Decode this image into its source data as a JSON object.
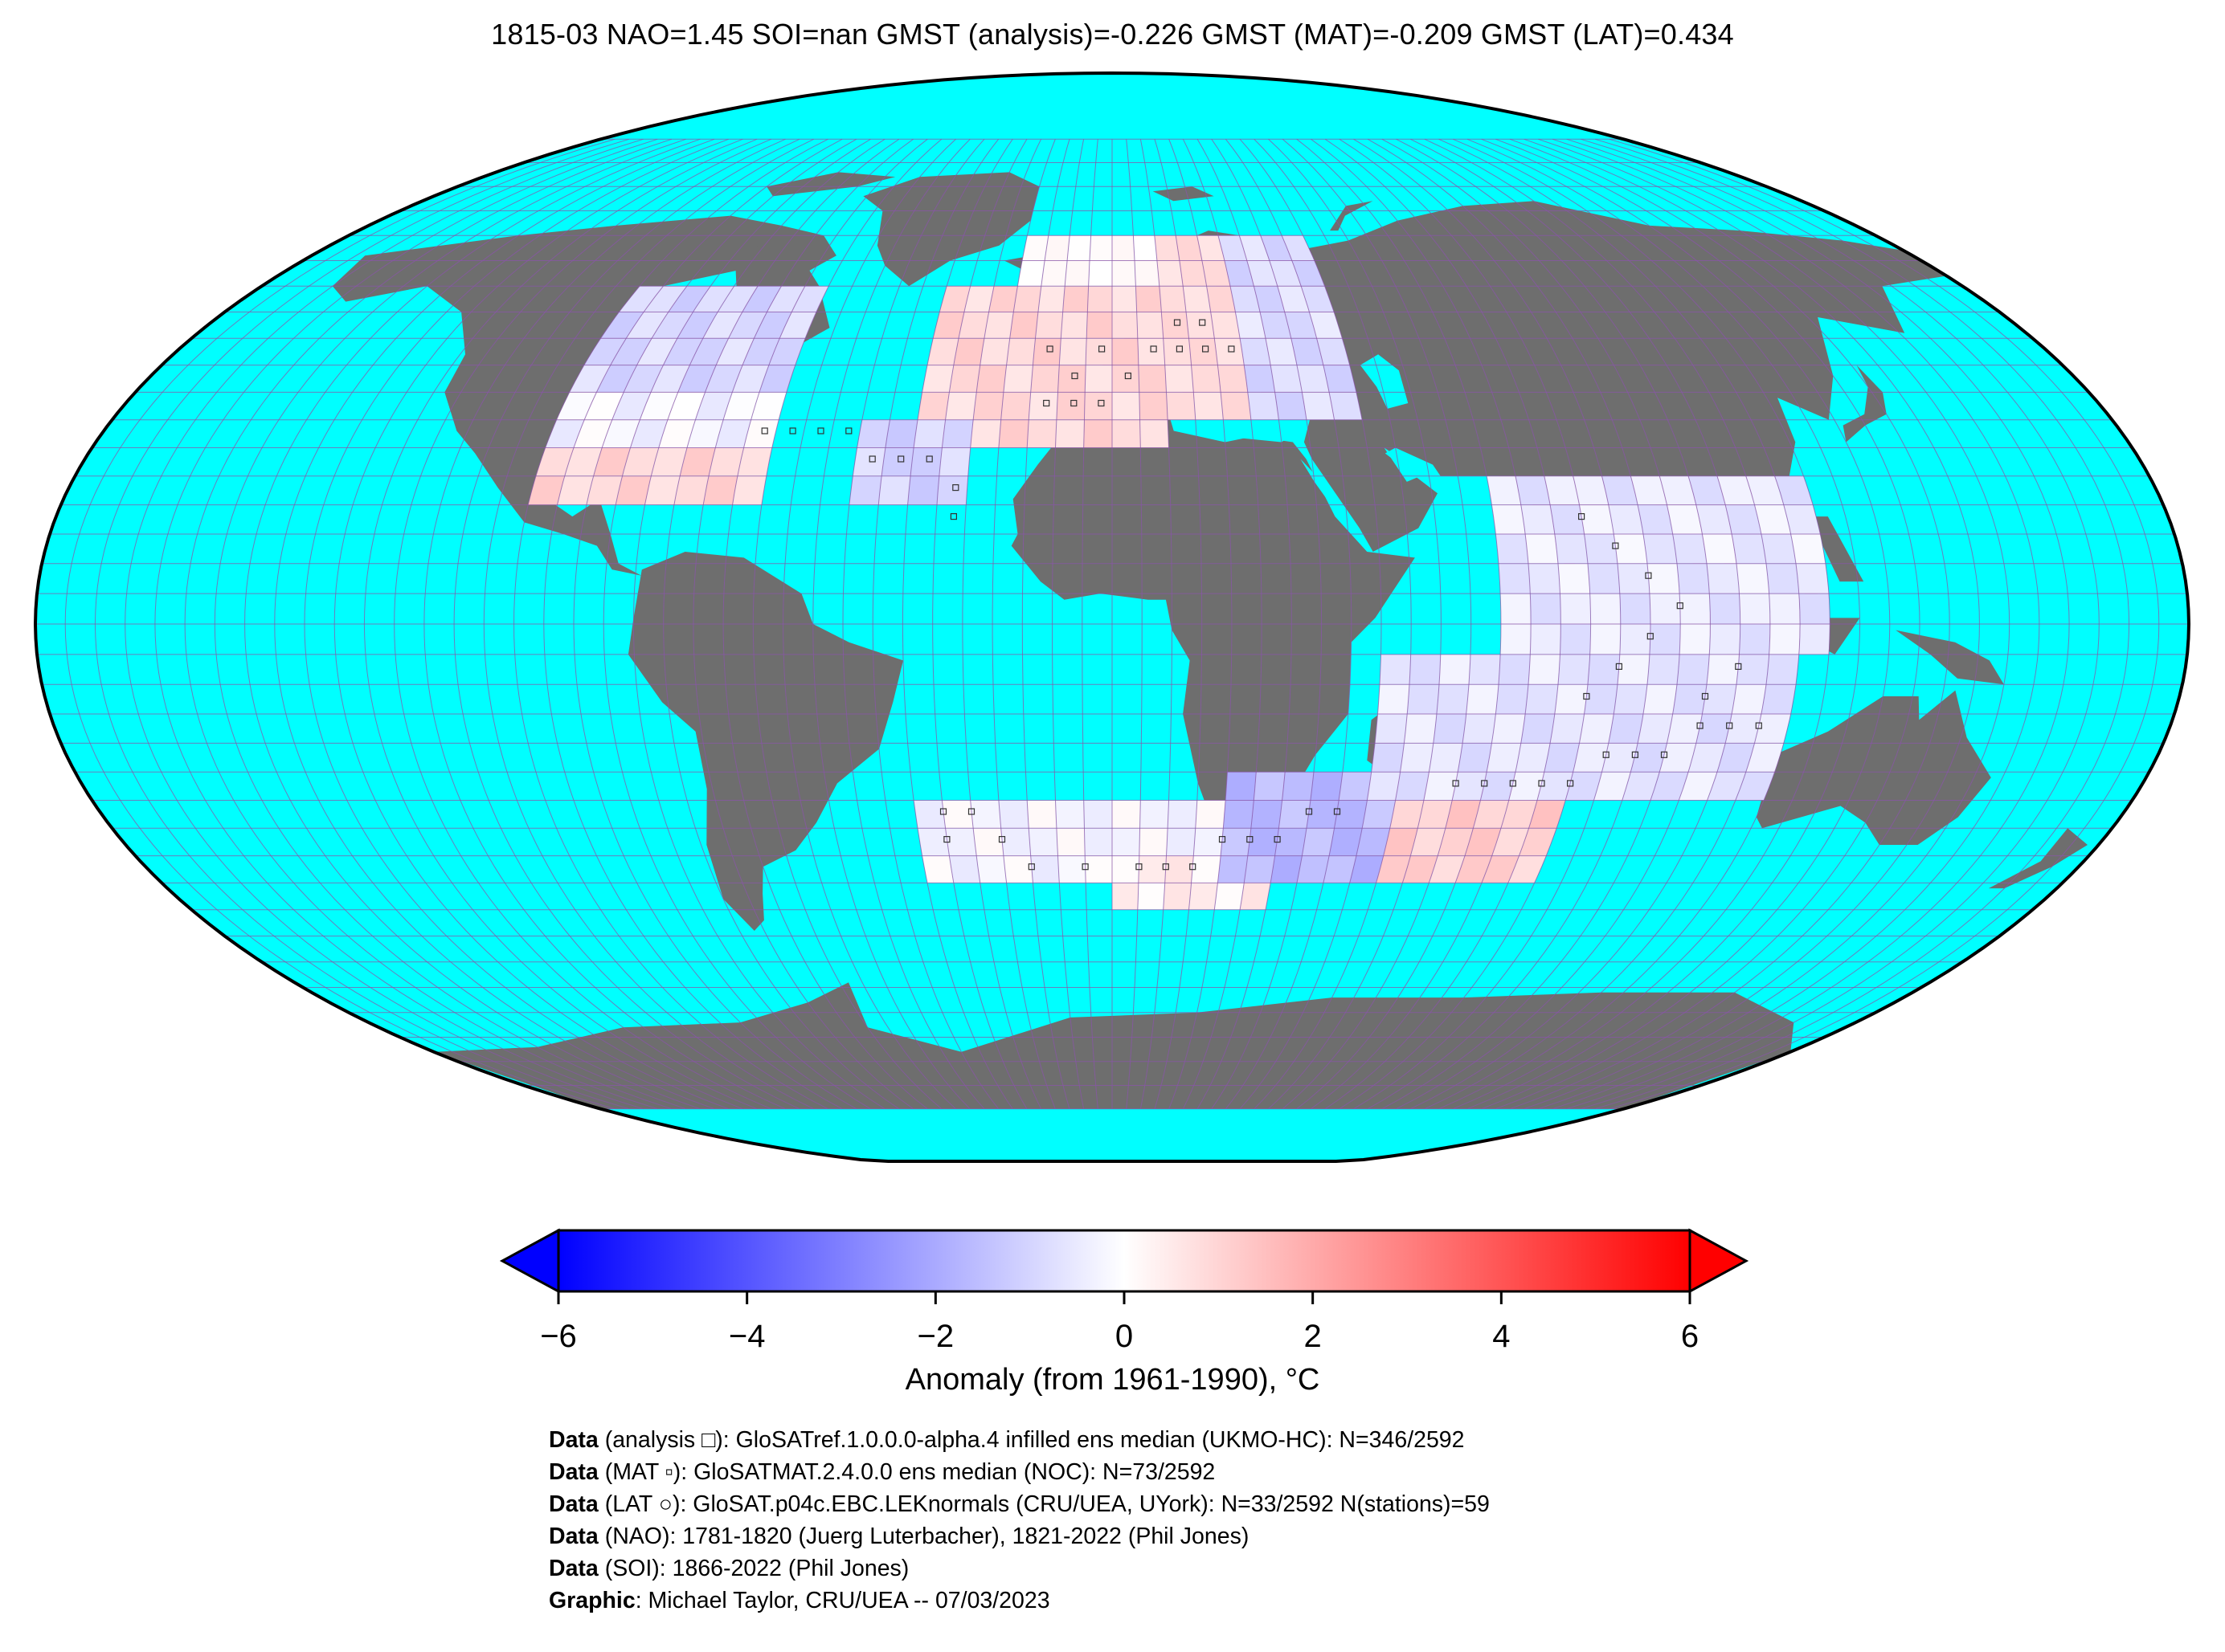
{
  "title": "1815-03 NAO=1.45 SOI=nan GMST (analysis)=-0.226 GMST (MAT)=-0.209 GMST (LAT)=0.434",
  "colors": {
    "ocean": "#00ffff",
    "land": "#6e6e6e",
    "frame": "#000000",
    "grid": "#8a56a8",
    "cold": "#0000ff",
    "neutral": "#ffffff",
    "warm": "#ff0000"
  },
  "colorbar": {
    "label": "Anomaly (from 1961-1990), °C",
    "min": -6,
    "max": 6,
    "extend": "both",
    "ticks": [
      {
        "value": -6,
        "label": "−6"
      },
      {
        "value": -4,
        "label": "−4"
      },
      {
        "value": -2,
        "label": "−2"
      },
      {
        "value": 0,
        "label": "0"
      },
      {
        "value": 2,
        "label": "2"
      },
      {
        "value": 4,
        "label": "4"
      },
      {
        "value": 6,
        "label": "6"
      }
    ]
  },
  "credits": [
    {
      "bold": "Data",
      "text": " (analysis □): GloSATref.1.0.0.0-alpha.4 infilled ens median (UKMO-HC): N=346/2592"
    },
    {
      "bold": "Data",
      "text": " (MAT ▫): GloSATMAT.2.4.0.0 ens median (NOC): N=73/2592"
    },
    {
      "bold": "Data",
      "text": " (LAT ○): GloSAT.p04c.EBC.LEKnormals (CRU/UEA, UYork): N=33/2592 N(stations)=59"
    },
    {
      "bold": "Data",
      "text": " (NAO): 1781-1820 (Juerg Luterbacher), 1821-2022 (Phil Jones)"
    },
    {
      "bold": "Data",
      "text": " (SOI): 1866-2022 (Phil Jones)"
    },
    {
      "bold": "Graphic",
      "text": ": Michael Taylor, CRU/UEA -- 07/03/2023"
    }
  ]
}
